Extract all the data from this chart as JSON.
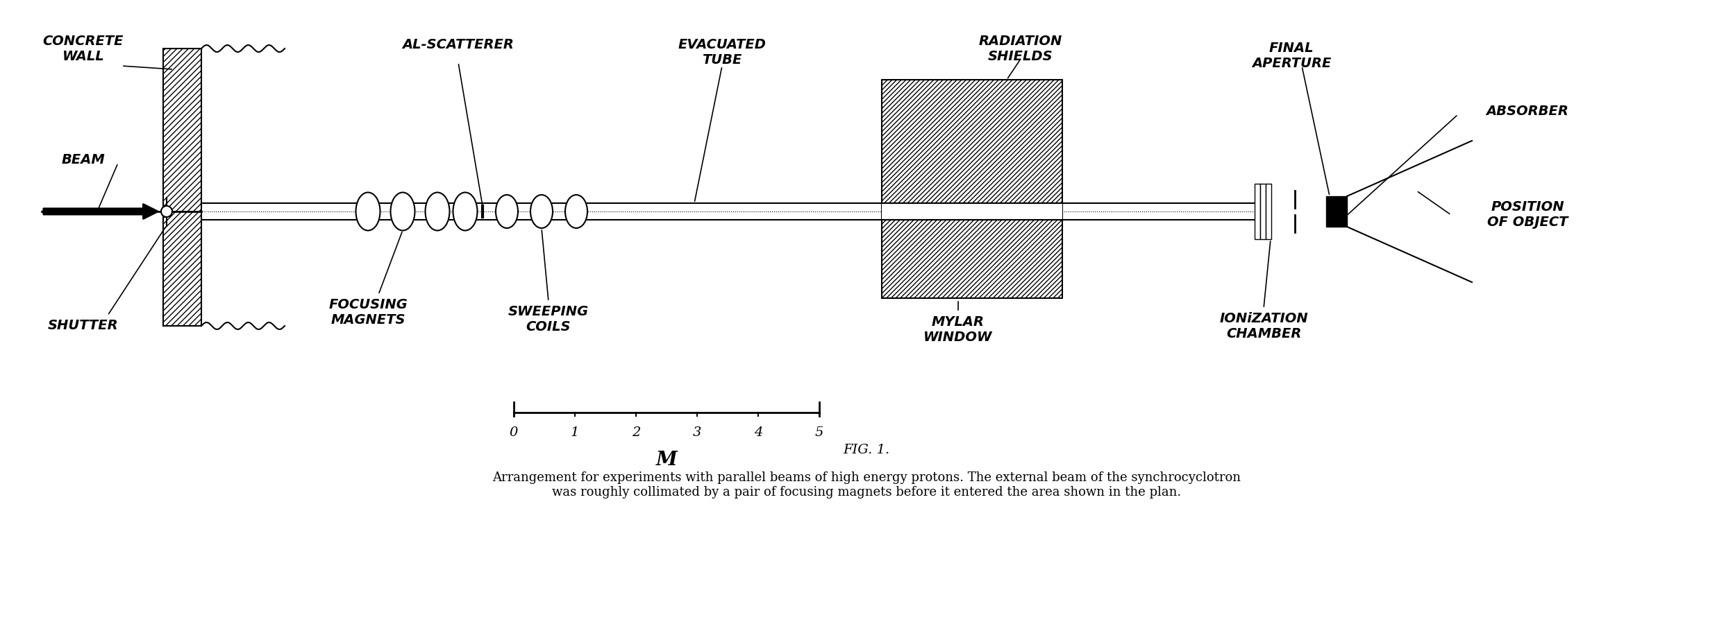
{
  "bg_color": "#ffffff",
  "fg_color": "#000000",
  "title": "FIG. 1.",
  "caption": "Arrangement for experiments with parallel beams of high energy protons. The external beam of the synchrocyclotron\nwas roughly collimated by a pair of focusing magnets before it entered the area shown in the plan.",
  "labels": {
    "concrete_wall": "CONCRETE\nWALL",
    "beam": "BEAM",
    "shutter": "SHUTTER",
    "al_scatterer": "AL-SCATTERER",
    "focusing_magnets": "FOCUSING\nMAGNETS",
    "sweeping_coils": "SWEEPING\nCOILS",
    "evacuated_tube": "EVACUATED\nTUBE",
    "radiation_shields": "RADIATION\nSHIELDS",
    "mylar_window": "MYLAR\nWINDOW",
    "final_aperture": "FINAL\nAPERTURE",
    "ionization_chamber": "IONiZATION\nCHAMBER",
    "absorber": "ABSORBER",
    "position_of_object": "POSITION\nOF OBJECT"
  },
  "scale_ticks": [
    0,
    1,
    2,
    3,
    4,
    5
  ],
  "scale_label": "M"
}
